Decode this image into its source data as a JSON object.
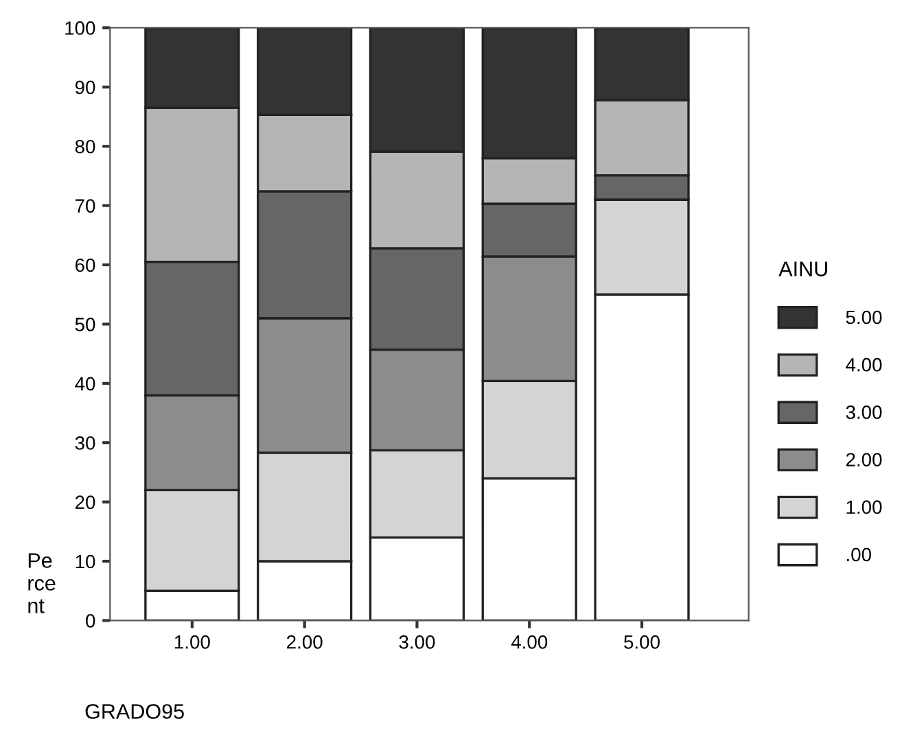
{
  "chart_data": {
    "type": "bar",
    "stacked": true,
    "xlabel": "GRADO95",
    "ylabel": "Pe\nrce\nnt",
    "legend_title": "AINU",
    "legend": "right",
    "categories": [
      "1.00",
      "2.00",
      "3.00",
      "4.00",
      "5.00"
    ],
    "ylim": [
      0,
      100
    ],
    "yticks": [
      0,
      10,
      20,
      30,
      40,
      50,
      60,
      70,
      80,
      90,
      100
    ],
    "grid": false,
    "series": [
      {
        "name": ".00",
        "color": "#ffffff",
        "values": [
          5,
          10,
          14,
          24,
          55
        ]
      },
      {
        "name": "1.00",
        "color": "#d4d4d4",
        "values": [
          17,
          18.3,
          14.7,
          16.4,
          16
        ]
      },
      {
        "name": "2.00",
        "color": "#8c8c8c",
        "values": [
          16,
          22.7,
          17,
          21,
          0
        ]
      },
      {
        "name": "3.00",
        "color": "#666666",
        "values": [
          22.5,
          21.4,
          17.1,
          8.9,
          4.1
        ]
      },
      {
        "name": "4.00",
        "color": "#b5b5b5",
        "values": [
          26,
          12.9,
          16.3,
          7.7,
          12.7
        ]
      },
      {
        "name": "5.00",
        "color": "#333333",
        "values": [
          13.5,
          14.7,
          20.9,
          22,
          12.2
        ]
      }
    ]
  }
}
